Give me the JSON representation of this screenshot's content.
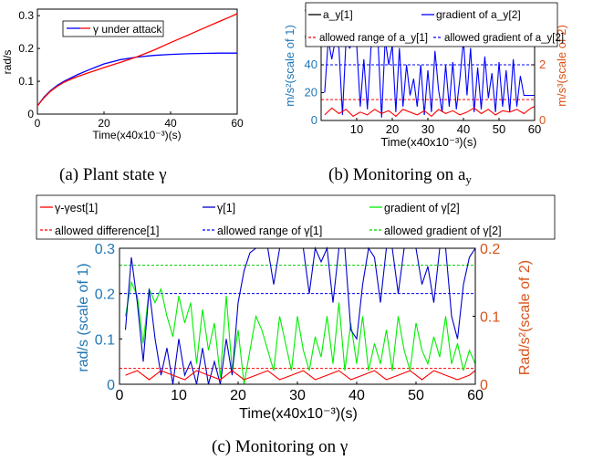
{
  "captions": {
    "a": "(a) Plant state γ",
    "b": "(b) Monitoring on a",
    "b_sub": "y",
    "c": "(c) Monitoring on γ"
  },
  "chart_data": [
    {
      "id": "a",
      "type": "line",
      "xlabel": "Time(x40x10⁻³)(s)",
      "ylabel": "rad/s",
      "xlim": [
        0,
        60
      ],
      "ylim": [
        0,
        0.32
      ],
      "xticks": [
        0,
        20,
        40,
        60
      ],
      "yticks": [
        0,
        0.1,
        0.2,
        0.3
      ],
      "ytick_labels": [
        "0",
        "0.1",
        "0.2",
        "0.3"
      ],
      "legend": {
        "position": "top-center",
        "entries": [
          "γ under attack"
        ]
      },
      "grid": false,
      "series": [
        {
          "name": "γ",
          "color": "#0000ff",
          "x": [
            0,
            2,
            4,
            6,
            8,
            10,
            12,
            15,
            18,
            20,
            25,
            30,
            35,
            40,
            45,
            50,
            55,
            60
          ],
          "y": [
            0.025,
            0.052,
            0.072,
            0.088,
            0.1,
            0.11,
            0.12,
            0.133,
            0.145,
            0.153,
            0.166,
            0.174,
            0.179,
            0.182,
            0.184,
            0.185,
            0.186,
            0.186
          ]
        },
        {
          "name": "γ under attack",
          "color": "#ff0000",
          "x": [
            0,
            2,
            4,
            6,
            8,
            10,
            12,
            15,
            18,
            20,
            25,
            30,
            35,
            40,
            45,
            50,
            55,
            58,
            60
          ],
          "y": [
            0.025,
            0.05,
            0.07,
            0.085,
            0.097,
            0.106,
            0.114,
            0.125,
            0.135,
            0.142,
            0.158,
            0.175,
            0.195,
            0.218,
            0.24,
            0.262,
            0.284,
            0.297,
            0.306
          ]
        }
      ]
    },
    {
      "id": "b",
      "type": "line",
      "xlabel": "Time(x40x10⁻³)(s)",
      "ylabel_left": "m/s²(scale of 1)",
      "ylabel_right": "m/s³(scale of 2)",
      "xlim": [
        0,
        60
      ],
      "ylim_left": [
        0,
        80
      ],
      "ylim_right": [
        0,
        4
      ],
      "xticks": [
        10,
        20,
        30,
        40,
        50,
        60
      ],
      "yticks_left": [
        0,
        20,
        40,
        60,
        80
      ],
      "yticks_right": [
        0,
        2,
        4
      ],
      "left_axis_color": "#1f77b4",
      "right_axis_color": "#d95319",
      "grid": false,
      "legend": {
        "position": "top",
        "entries": [
          "a_y[1]",
          "gradient of a_y[2]",
          "allowed range of a_y[1]",
          "allowed gradient of a_y[2]"
        ]
      },
      "thresholds": [
        {
          "name": "allowed range of a_y[1]",
          "color": "#ff0000",
          "axis": "left",
          "value": 15
        },
        {
          "name": "allowed gradient of a_y[2]",
          "color": "#0000ff",
          "axis": "right",
          "value": 2
        }
      ],
      "series": [
        {
          "name": "gradient of a_y[2]",
          "color": "#0000ff",
          "axis": "right",
          "x": [
            1,
            2,
            3,
            4,
            5,
            6,
            7,
            8,
            9,
            10,
            11,
            12,
            13,
            14,
            15,
            16,
            17,
            18,
            19,
            20,
            21,
            22,
            23,
            24,
            25,
            26,
            27,
            28,
            29,
            30,
            31,
            32,
            33,
            34,
            35,
            36,
            37,
            38,
            39,
            40,
            41,
            42,
            43,
            44,
            45,
            46,
            47,
            48,
            49,
            50,
            51,
            52,
            53,
            54,
            55,
            56,
            57,
            58,
            59,
            60
          ],
          "y": [
            1.0,
            2.9,
            2.2,
            2.9,
            2.6,
            0.2,
            2.9,
            2.6,
            2.8,
            2.7,
            0.5,
            2.2,
            0.4,
            2.6,
            3.0,
            2.8,
            0.1,
            2.9,
            2.0,
            2.7,
            0.3,
            2.6,
            0.5,
            2.0,
            0.9,
            1.5,
            0.5,
            2.0,
            0.2,
            1.8,
            0.3,
            2.5,
            1.1,
            0.3,
            2.0,
            0.5,
            2.1,
            0.4,
            1.5,
            2.9,
            0.9,
            2.6,
            0.3,
            1.9,
            0.4,
            2.3,
            0.8,
            1.7,
            0.3,
            2.1,
            0.5,
            1.8,
            0.3,
            2.2,
            0.5,
            1.6,
            0.9,
            0.9,
            0.9,
            0.9
          ]
        },
        {
          "name": "a_y[1]",
          "color": "#ff0000",
          "axis": "left",
          "x": [
            1,
            3,
            5,
            7,
            9,
            11,
            13,
            15,
            17,
            19,
            21,
            23,
            25,
            27,
            29,
            31,
            33,
            35,
            37,
            39,
            41,
            43,
            45,
            47,
            49,
            51,
            53,
            55,
            57,
            59,
            60
          ],
          "y": [
            4,
            9,
            5,
            8,
            3,
            6,
            4,
            8,
            5,
            7,
            3,
            8,
            6,
            4,
            7,
            3,
            8,
            5,
            7,
            4,
            6,
            9,
            5,
            8,
            4,
            7,
            6,
            8,
            5,
            9,
            10
          ]
        }
      ]
    },
    {
      "id": "c",
      "type": "line",
      "xlabel": "Time(x40x10⁻³)(s)",
      "ylabel_left": "rad/s (scale of 1)",
      "ylabel_right": "Rad/s²(scale of 2)",
      "xlim": [
        0,
        60
      ],
      "ylim_left": [
        0,
        0.3
      ],
      "ylim_right": [
        0,
        0.2
      ],
      "xticks": [
        0,
        10,
        20,
        30,
        40,
        50,
        60
      ],
      "yticks_left": [
        0,
        0.1,
        0.2,
        0.3
      ],
      "ytick_labels_left": [
        "0",
        "0.1",
        "0.2",
        "0.3"
      ],
      "yticks_right": [
        0,
        0.1,
        0.2
      ],
      "ytick_labels_right": [
        "0",
        "0.1",
        "0.2"
      ],
      "left_axis_color": "#1f77b4",
      "right_axis_color": "#d95319",
      "grid": false,
      "legend": {
        "position": "top",
        "entries": [
          "γ-γest[1]",
          "γ[1]",
          "gradient of γ[2]",
          "allowed difference[1]",
          "allowed range of γ[1]",
          "allowed gradient of γ[2]"
        ]
      },
      "thresholds": [
        {
          "name": "allowed difference[1]",
          "color": "#ff0000",
          "axis": "left",
          "value": 0.035
        },
        {
          "name": "allowed range of γ[1]",
          "color": "#0000ff",
          "axis": "left",
          "value": 0.2
        },
        {
          "name": "allowed gradient of γ[2]",
          "color": "#00cc00",
          "axis": "right",
          "value": 0.175
        }
      ],
      "series": [
        {
          "name": "gradient of γ[2]",
          "color": "#00ee00",
          "axis": "right",
          "x": [
            1,
            2,
            3,
            4,
            5,
            6,
            7,
            8,
            9,
            10,
            11,
            12,
            13,
            14,
            15,
            16,
            17,
            18,
            19,
            20,
            21,
            22,
            23,
            24,
            25,
            26,
            27,
            28,
            29,
            30,
            31,
            32,
            33,
            34,
            35,
            36,
            37,
            38,
            39,
            40,
            41,
            42,
            43,
            44,
            45,
            46,
            47,
            48,
            49,
            50,
            51,
            52,
            53,
            54,
            55,
            56,
            57,
            58,
            59,
            60
          ],
          "y": [
            0.1,
            0.15,
            0.13,
            0.06,
            0.14,
            0.12,
            0.14,
            0.1,
            0.07,
            0.13,
            0.09,
            0.12,
            0.03,
            0.11,
            0.05,
            0.09,
            0.01,
            0.13,
            0.02,
            0.08,
            0.0,
            0.05,
            0.1,
            0.08,
            0.05,
            0.02,
            0.1,
            0.06,
            0.02,
            0.1,
            0.05,
            0.02,
            0.07,
            0.04,
            0.1,
            0.03,
            0.12,
            0.02,
            0.09,
            0.03,
            0.1,
            0.02,
            0.06,
            0.03,
            0.08,
            0.02,
            0.1,
            0.05,
            0.02,
            0.09,
            0.05,
            0.03,
            0.07,
            0.04,
            0.1,
            0.03,
            0.06,
            0.02,
            0.05,
            0.03
          ]
        },
        {
          "name": "γ[1]",
          "color": "#0000cc",
          "axis": "left",
          "x": [
            1,
            2,
            3,
            4,
            5,
            6,
            7,
            8,
            9,
            10,
            11,
            12,
            13,
            14,
            15,
            16,
            17,
            18,
            19,
            20,
            21,
            22,
            23,
            24,
            25,
            26,
            27,
            28,
            29,
            30,
            31,
            32,
            33,
            34,
            35,
            36,
            37,
            38,
            39,
            40,
            41,
            42,
            43,
            44,
            45,
            46,
            47,
            48,
            49,
            50,
            51,
            52,
            53,
            54,
            55,
            56,
            57,
            58,
            59,
            60
          ],
          "y": [
            0.12,
            0.28,
            0.18,
            0.05,
            0.21,
            0.1,
            0.02,
            0.08,
            0.0,
            0.1,
            0.02,
            0.05,
            0.0,
            0.08,
            0.0,
            0.05,
            0.0,
            0.1,
            0.02,
            0.18,
            0.25,
            0.29,
            0.3,
            0.3,
            0.3,
            0.22,
            0.3,
            0.3,
            0.3,
            0.3,
            0.3,
            0.2,
            0.3,
            0.27,
            0.3,
            0.18,
            0.3,
            0.3,
            0.12,
            0.1,
            0.22,
            0.3,
            0.28,
            0.18,
            0.3,
            0.3,
            0.2,
            0.3,
            0.3,
            0.3,
            0.22,
            0.26,
            0.18,
            0.3,
            0.3,
            0.15,
            0.1,
            0.22,
            0.28,
            0.3
          ]
        },
        {
          "name": "γ-γest[1]",
          "color": "#ff0000",
          "axis": "left",
          "x": [
            1,
            3,
            5,
            7,
            9,
            11,
            13,
            15,
            17,
            19,
            21,
            23,
            25,
            27,
            29,
            31,
            33,
            35,
            37,
            39,
            41,
            43,
            45,
            47,
            49,
            51,
            53,
            55,
            57,
            59,
            60
          ],
          "y": [
            0.02,
            0.03,
            0.01,
            0.03,
            0.02,
            0.01,
            0.03,
            0.02,
            0.01,
            0.03,
            0.01,
            0.02,
            0.03,
            0.01,
            0.02,
            0.03,
            0.01,
            0.02,
            0.03,
            0.01,
            0.02,
            0.03,
            0.01,
            0.02,
            0.03,
            0.01,
            0.03,
            0.02,
            0.01,
            0.02,
            0.03
          ]
        }
      ]
    }
  ]
}
